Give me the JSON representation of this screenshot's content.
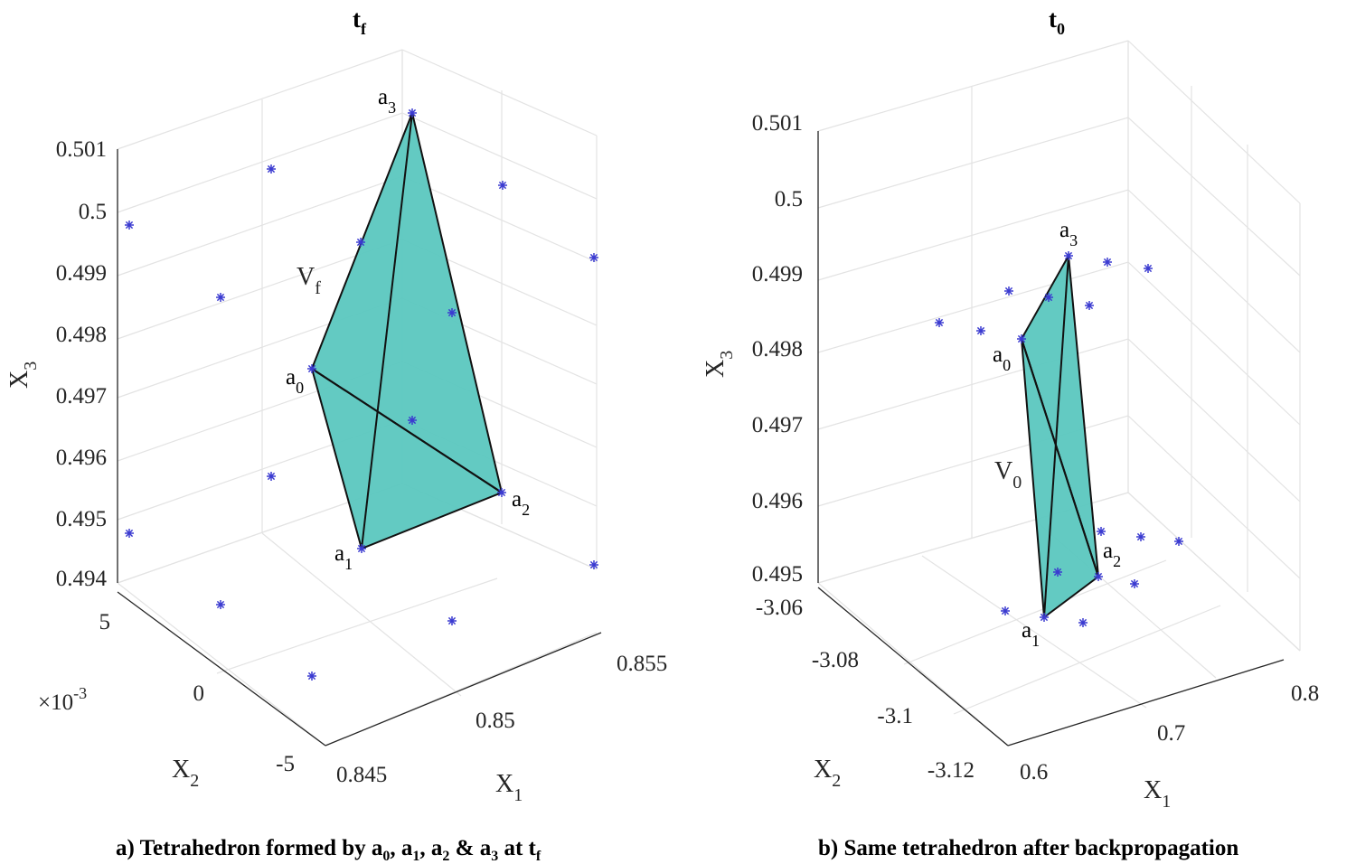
{
  "chart_data": [
    {
      "type": "scatter3d",
      "title": "t",
      "title_sub": "f",
      "caption_parts": [
        "a) Tetrahedron formed by a",
        "0",
        ", a",
        "1",
        ", a",
        "2",
        " & a",
        "3",
        " at t",
        "f"
      ],
      "xlabel": "X",
      "xlabel_sub": "1",
      "ylabel": "X",
      "ylabel_sub": "2",
      "zlabel": "X",
      "zlabel_sub": "3",
      "y_exponent": "×10",
      "y_exponent_power": "-3",
      "x_ticks": [
        "0.845",
        "0.85",
        "0.855"
      ],
      "y_ticks": [
        "-5",
        "0",
        "5"
      ],
      "z_ticks": [
        "0.494",
        "0.495",
        "0.496",
        "0.497",
        "0.498",
        "0.499",
        "0.5",
        "0.501"
      ],
      "volume_label": "V",
      "volume_label_sub": "f",
      "vertices": [
        {
          "name": "a",
          "sub": "0",
          "x": 0.8445,
          "y": 0.001,
          "z": 0.4975
        },
        {
          "name": "a",
          "sub": "1",
          "x": 0.8455,
          "y": -0.0045,
          "z": 0.4945
        },
        {
          "name": "a",
          "sub": "2",
          "x": 0.8525,
          "y": -0.002,
          "z": 0.4955
        },
        {
          "name": "a",
          "sub": "3",
          "x": 0.848,
          "y": 0.004,
          "z": 0.5012
        }
      ],
      "sample_points_count": 14
    },
    {
      "type": "scatter3d",
      "title": "t",
      "title_sub": "0",
      "caption_parts": [
        "b) Same tetrahedron after backpropagation"
      ],
      "xlabel": "X",
      "xlabel_sub": "1",
      "ylabel": "X",
      "ylabel_sub": "2",
      "zlabel": "X",
      "zlabel_sub": "3",
      "x_ticks": [
        "0.6",
        "0.7",
        "0.8"
      ],
      "y_ticks": [
        "-3.12",
        "-3.1",
        "-3.08",
        "-3.06"
      ],
      "z_ticks": [
        "0.495",
        "0.496",
        "0.497",
        "0.498",
        "0.499",
        "0.5",
        "0.501"
      ],
      "volume_label": "V",
      "volume_label_sub": "0",
      "vertices": [
        {
          "name": "a",
          "sub": "0",
          "x": 0.61,
          "y": -3.07,
          "z": 0.4982
        },
        {
          "name": "a",
          "sub": "1",
          "x": 0.64,
          "y": -3.09,
          "z": 0.4949
        },
        {
          "name": "a",
          "sub": "2",
          "x": 0.69,
          "y": -3.085,
          "z": 0.4956
        },
        {
          "name": "a",
          "sub": "3",
          "x": 0.68,
          "y": -3.08,
          "z": 0.4994
        }
      ],
      "sample_points_count": 14
    }
  ]
}
